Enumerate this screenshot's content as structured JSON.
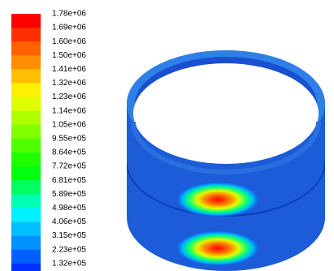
{
  "colorbar": {
    "labels": [
      "1.78e+06",
      "1.69e+06",
      "1.60e+06",
      "1.50e+06",
      "1.41e+06",
      "1.32e+06",
      "1.23e+06",
      "1.14e+06",
      "1.05e+06",
      "9.55e+05",
      "8.64e+05",
      "7.72e+05",
      "6.81e+05",
      "5.89e+05",
      "4.98e+05",
      "4.06e+05",
      "3.15e+05",
      "2.23e+05",
      "1.32e+05"
    ],
    "colors": [
      "#ff0000",
      "#ff3000",
      "#ff6000",
      "#ff8f00",
      "#ffbf00",
      "#ffef00",
      "#dfff00",
      "#afff00",
      "#80ff00",
      "#50ff00",
      "#20ff00",
      "#00ff10",
      "#00ff60",
      "#00ffb0",
      "#00f0ff",
      "#00c0ff",
      "#0090ff",
      "#0060ff",
      "#0030ff"
    ]
  }
}
